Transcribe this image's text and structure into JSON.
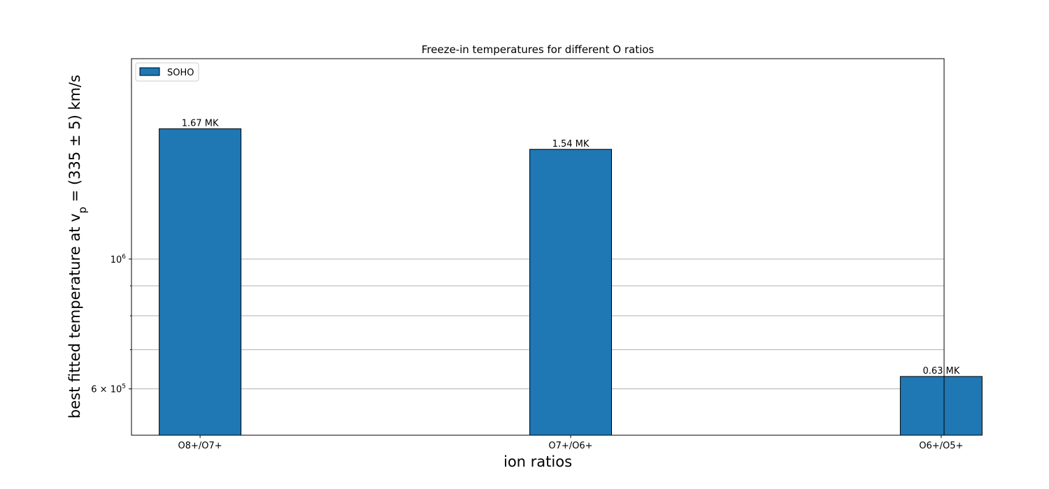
{
  "chart_data": {
    "type": "bar",
    "title": "Freeze-in temperatures for different O ratios",
    "xlabel": "ion ratios",
    "ylabel_text": "best fitted temperature at v",
    "ylabel_subscript": "p",
    "ylabel_tail": " = (335 ± 5) km/s",
    "yscale": "log",
    "ylim": [
      500000,
      2200000
    ],
    "yticks": [
      {
        "base": "10",
        "exp": "6",
        "mult": "",
        "value": 1000000
      },
      {
        "base": "10",
        "exp": "5",
        "mult": "6 × ",
        "value": 600000
      }
    ],
    "minor_grid_values": [
      700000,
      800000,
      900000
    ],
    "categories": [
      "O8+/O7+",
      "O7+/O6+",
      "O6+/O5+"
    ],
    "series": [
      {
        "name": "SOHO",
        "values": [
          1670000,
          1540000,
          630000
        ],
        "labels": [
          "1.67 MK",
          "1.54 MK",
          "0.63 MK"
        ],
        "color": "#1f77b4"
      }
    ],
    "legend_position": "top-left",
    "grid": "y-axis (major and minor)"
  }
}
